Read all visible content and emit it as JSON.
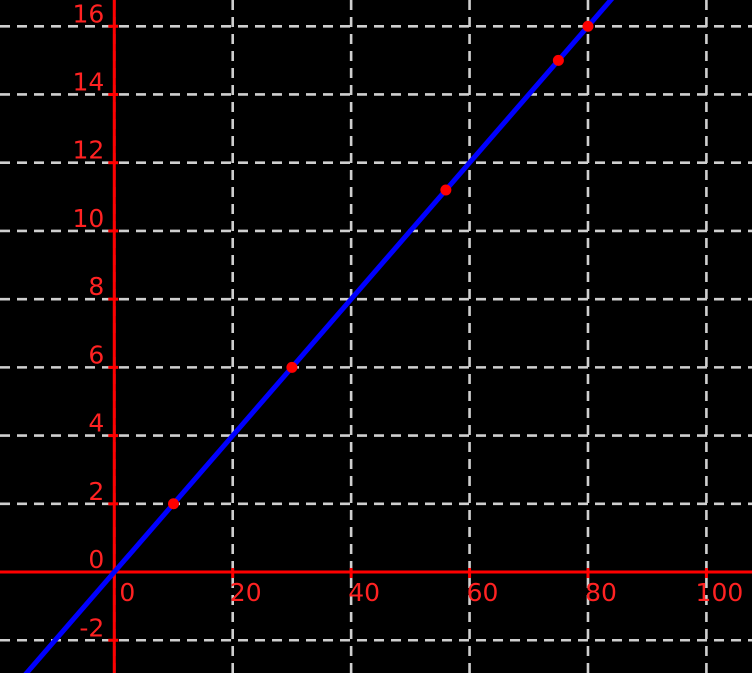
{
  "chart_data": {
    "type": "scatter",
    "title": "",
    "xlabel": "",
    "ylabel": "",
    "legend": "none",
    "grid": "dashed",
    "x_range": [
      -19.3,
      107.7
    ],
    "y_range": [
      -2.96,
      16.77
    ],
    "x_ticks": {
      "step": 20,
      "values": [
        0,
        20,
        40,
        60,
        80,
        100
      ],
      "labels": [
        "0",
        "20",
        "40",
        "60",
        "80",
        "100"
      ]
    },
    "y_ticks": {
      "step": 2,
      "values": [
        -2,
        0,
        2,
        4,
        6,
        8,
        10,
        12,
        14,
        16
      ],
      "labels": [
        "-2",
        "0",
        "2",
        "4",
        "6",
        "8",
        "10",
        "12",
        "14",
        "16"
      ]
    },
    "points": [
      {
        "x": 10,
        "y": 2
      },
      {
        "x": 30,
        "y": 6
      },
      {
        "x": 56,
        "y": 11.2
      },
      {
        "x": 75,
        "y": 15
      },
      {
        "x": 80,
        "y": 16
      }
    ],
    "fit_line": {
      "slope": 0.2,
      "intercept": 0,
      "equation": "y = 0.2x"
    },
    "colors": {
      "background": "#000000",
      "grid": "#cfcfcf",
      "axis": "#ff0000",
      "tick_label": "#ff2222",
      "line": "#0000ff",
      "point": "#ff0000"
    }
  }
}
